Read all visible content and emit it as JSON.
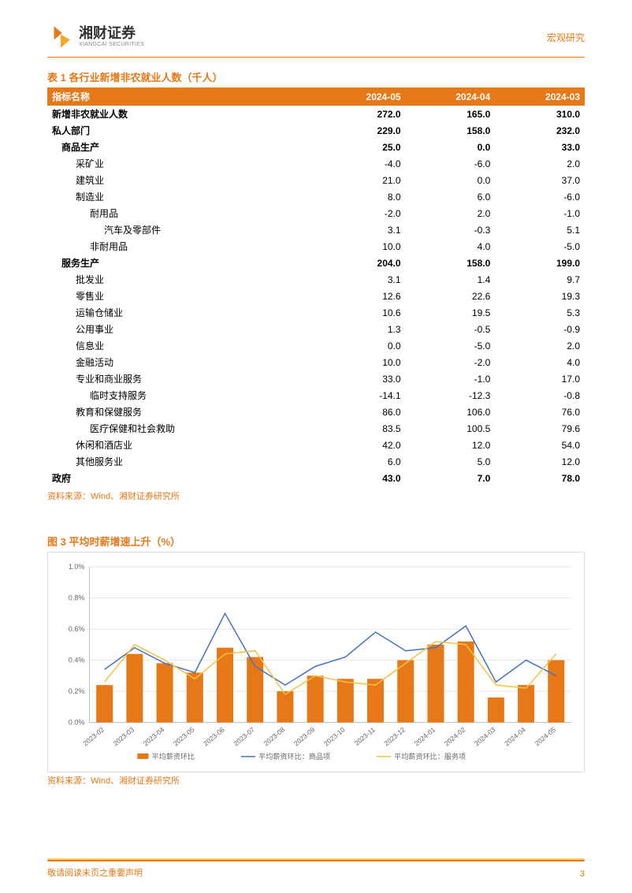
{
  "header": {
    "logo_main": "湘财证券",
    "logo_sub": "XIANGCAI SECURITIES",
    "right_label": "宏观研究"
  },
  "table": {
    "title": "表 1 各行业新增非农就业人数（千人）",
    "col_header_label": "指标名称",
    "periods": [
      "2024-05",
      "2024-04",
      "2024-03"
    ],
    "rows": [
      {
        "label": "新增非农就业人数",
        "indent": 0,
        "bold": true,
        "values": [
          "272.0",
          "165.0",
          "310.0"
        ]
      },
      {
        "label": "私人部门",
        "indent": 0,
        "bold": true,
        "values": [
          "229.0",
          "158.0",
          "232.0"
        ]
      },
      {
        "label": "商品生产",
        "indent": 1,
        "bold": true,
        "values": [
          "25.0",
          "0.0",
          "33.0"
        ]
      },
      {
        "label": "采矿业",
        "indent": 2,
        "bold": false,
        "values": [
          "-4.0",
          "-6.0",
          "2.0"
        ]
      },
      {
        "label": "建筑业",
        "indent": 2,
        "bold": false,
        "values": [
          "21.0",
          "0.0",
          "37.0"
        ]
      },
      {
        "label": "制造业",
        "indent": 2,
        "bold": false,
        "values": [
          "8.0",
          "6.0",
          "-6.0"
        ]
      },
      {
        "label": "耐用品",
        "indent": 3,
        "bold": false,
        "values": [
          "-2.0",
          "2.0",
          "-1.0"
        ]
      },
      {
        "label": "汽车及零部件",
        "indent": 4,
        "bold": false,
        "values": [
          "3.1",
          "-0.3",
          "5.1"
        ]
      },
      {
        "label": "非耐用品",
        "indent": 3,
        "bold": false,
        "values": [
          "10.0",
          "4.0",
          "-5.0"
        ]
      },
      {
        "label": "服务生产",
        "indent": 1,
        "bold": true,
        "values": [
          "204.0",
          "158.0",
          "199.0"
        ]
      },
      {
        "label": "批发业",
        "indent": 2,
        "bold": false,
        "values": [
          "3.1",
          "1.4",
          "9.7"
        ]
      },
      {
        "label": "零售业",
        "indent": 2,
        "bold": false,
        "values": [
          "12.6",
          "22.6",
          "19.3"
        ]
      },
      {
        "label": "运输仓储业",
        "indent": 2,
        "bold": false,
        "values": [
          "10.6",
          "19.5",
          "5.3"
        ]
      },
      {
        "label": "公用事业",
        "indent": 2,
        "bold": false,
        "values": [
          "1.3",
          "-0.5",
          "-0.9"
        ]
      },
      {
        "label": "信息业",
        "indent": 2,
        "bold": false,
        "values": [
          "0.0",
          "-5.0",
          "2.0"
        ]
      },
      {
        "label": "金融活动",
        "indent": 2,
        "bold": false,
        "values": [
          "10.0",
          "-2.0",
          "4.0"
        ]
      },
      {
        "label": "专业和商业服务",
        "indent": 2,
        "bold": false,
        "values": [
          "33.0",
          "-1.0",
          "17.0"
        ]
      },
      {
        "label": "临时支持服务",
        "indent": 3,
        "bold": false,
        "values": [
          "-14.1",
          "-12.3",
          "-0.8"
        ]
      },
      {
        "label": "教育和保健服务",
        "indent": 2,
        "bold": false,
        "values": [
          "86.0",
          "106.0",
          "76.0"
        ]
      },
      {
        "label": "医疗保健和社会救助",
        "indent": 3,
        "bold": false,
        "values": [
          "83.5",
          "100.5",
          "79.6"
        ]
      },
      {
        "label": "休闲和酒店业",
        "indent": 2,
        "bold": false,
        "values": [
          "42.0",
          "12.0",
          "54.0"
        ]
      },
      {
        "label": "其他服务业",
        "indent": 2,
        "bold": false,
        "values": [
          "6.0",
          "5.0",
          "12.0"
        ]
      },
      {
        "label": "政府",
        "indent": 0,
        "bold": true,
        "values": [
          "43.0",
          "7.0",
          "78.0"
        ]
      }
    ],
    "source": "资料来源：Wind、湘财证券研究所"
  },
  "chart": {
    "title": "图 3 平均时薪增速上升（%）",
    "type": "combo-bar-line",
    "categories": [
      "2023-02",
      "2023-03",
      "2023-04",
      "2023-05",
      "2023-06",
      "2023-07",
      "2023-08",
      "2023-09",
      "2023-10",
      "2023-11",
      "2023-12",
      "2024-01",
      "2024-02",
      "2024-03",
      "2024-04",
      "2024-05"
    ],
    "ylim": [
      0,
      1.0
    ],
    "ytick_step": 0.2,
    "ytick_format_pct": true,
    "grid_color": "#d9d9d9",
    "background_color": "#ffffff",
    "axis_color": "#bfbfbf",
    "label_fontsize": 9,
    "series": {
      "bar": {
        "name": "平均薪资环比",
        "color": "#e67817",
        "bar_width": 0.55,
        "values": [
          0.24,
          0.44,
          0.38,
          0.32,
          0.48,
          0.42,
          0.2,
          0.3,
          0.28,
          0.28,
          0.4,
          0.5,
          0.52,
          0.16,
          0.24,
          0.4
        ]
      },
      "line_goods": {
        "name": "平均薪资环比：商品项",
        "color": "#4472c4",
        "line_width": 1.5,
        "values": [
          0.34,
          0.48,
          0.38,
          0.32,
          0.7,
          0.36,
          0.24,
          0.36,
          0.42,
          0.58,
          0.46,
          0.48,
          0.62,
          0.26,
          0.4,
          0.3
        ]
      },
      "line_services": {
        "name": "平均薪资环比：服务项",
        "color": "#f5c242",
        "line_width": 1.5,
        "values": [
          0.26,
          0.5,
          0.4,
          0.28,
          0.44,
          0.46,
          0.18,
          0.3,
          0.26,
          0.24,
          0.38,
          0.52,
          0.5,
          0.24,
          0.22,
          0.44
        ]
      }
    },
    "source": "资料来源：Wind、湘财证券研究所"
  },
  "footer": {
    "disclaimer": "敬请阅读末页之重要声明",
    "page_number": "3"
  }
}
